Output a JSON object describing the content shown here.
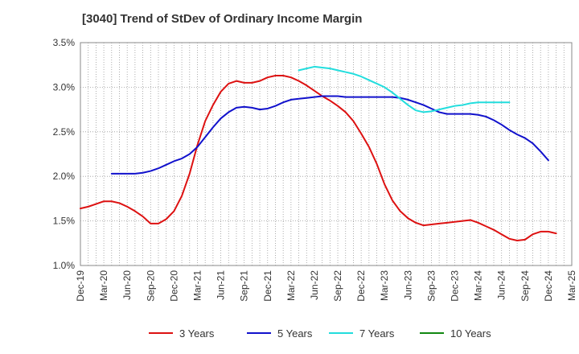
{
  "title": "[3040]  Trend of StDev of Ordinary Income Margin",
  "chart_data": {
    "type": "line",
    "title": "[3040]  Trend of StDev of Ordinary Income Margin",
    "xlabel": "",
    "ylabel": "",
    "x_ticks": [
      "Dec-19",
      "Mar-20",
      "Jun-20",
      "Sep-20",
      "Dec-20",
      "Mar-21",
      "Jun-21",
      "Sep-21",
      "Dec-21",
      "Mar-22",
      "Jun-22",
      "Sep-22",
      "Dec-22",
      "Mar-23",
      "Jun-23",
      "Sep-23",
      "Dec-23",
      "Mar-24",
      "Jun-24",
      "Sep-24",
      "Dec-24",
      "Mar-25"
    ],
    "y_ticks": [
      "1.0%",
      "1.5%",
      "2.0%",
      "2.5%",
      "3.0%",
      "3.5%"
    ],
    "ylim": [
      1.0,
      3.5
    ],
    "grid": true,
    "legend_position": "bottom",
    "series": [
      {
        "name": "3 Years",
        "color": "#dd1111",
        "values": [
          1.64,
          1.66,
          1.69,
          1.72,
          1.72,
          1.7,
          1.66,
          1.61,
          1.55,
          1.47,
          1.47,
          1.52,
          1.61,
          1.78,
          2.03,
          2.35,
          2.62,
          2.8,
          2.95,
          3.04,
          3.07,
          3.05,
          3.05,
          3.07,
          3.11,
          3.13,
          3.13,
          3.11,
          3.07,
          3.02,
          2.96,
          2.9,
          2.85,
          2.79,
          2.72,
          2.62,
          2.48,
          2.33,
          2.14,
          1.91,
          1.73,
          1.61,
          1.53,
          1.48,
          1.45,
          1.46,
          1.47,
          1.48,
          1.49,
          1.5,
          1.51,
          1.48,
          1.44,
          1.4,
          1.35,
          1.3,
          1.28,
          1.29,
          1.35,
          1.38,
          1.38,
          1.36
        ]
      },
      {
        "name": "5 Years",
        "color": "#1111cc",
        "values": [
          null,
          null,
          null,
          null,
          2.03,
          2.03,
          2.03,
          2.03,
          2.04,
          2.06,
          2.09,
          2.13,
          2.17,
          2.2,
          2.25,
          2.33,
          2.44,
          2.55,
          2.65,
          2.72,
          2.77,
          2.78,
          2.77,
          2.75,
          2.76,
          2.79,
          2.83,
          2.86,
          2.87,
          2.88,
          2.89,
          2.9,
          2.9,
          2.9,
          2.89,
          2.89,
          2.89,
          2.89,
          2.89,
          2.89,
          2.89,
          2.88,
          2.86,
          2.83,
          2.8,
          2.76,
          2.72,
          2.7,
          2.7,
          2.7,
          2.7,
          2.69,
          2.67,
          2.63,
          2.58,
          2.52,
          2.47,
          2.43,
          2.37,
          2.28,
          2.18
        ]
      },
      {
        "name": "7 Years",
        "color": "#22dddd",
        "values": [
          null,
          null,
          null,
          null,
          null,
          null,
          null,
          null,
          null,
          null,
          null,
          null,
          null,
          null,
          null,
          null,
          null,
          null,
          null,
          null,
          null,
          null,
          null,
          null,
          null,
          null,
          null,
          null,
          3.19,
          3.21,
          3.23,
          3.22,
          3.21,
          3.19,
          3.17,
          3.15,
          3.12,
          3.08,
          3.04,
          3.0,
          2.94,
          2.87,
          2.8,
          2.74,
          2.72,
          2.73,
          2.75,
          2.77,
          2.79,
          2.8,
          2.82,
          2.83,
          2.83,
          2.83,
          2.83,
          2.83
        ]
      },
      {
        "name": "10 Years",
        "color": "#118811",
        "values": []
      }
    ]
  }
}
